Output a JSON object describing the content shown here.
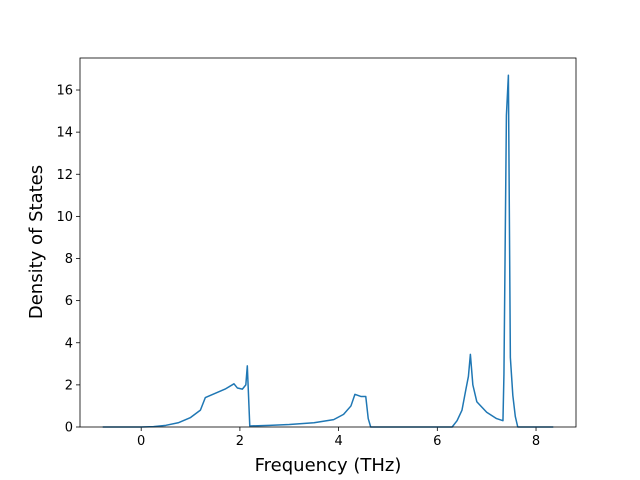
{
  "chart_data": {
    "type": "line",
    "x_label": "Frequency (THz)",
    "y_label": "Density of States",
    "color": "#1f77b4",
    "x": [
      -0.78,
      0,
      0.25,
      0.5,
      0.75,
      1.0,
      1.2,
      1.3,
      1.5,
      1.7,
      1.88,
      1.95,
      2.05,
      2.12,
      2.15,
      2.2,
      2.6,
      3.0,
      3.5,
      3.9,
      4.1,
      4.25,
      4.33,
      4.45,
      4.55,
      4.6,
      4.65,
      5.5,
      6.3,
      6.4,
      6.5,
      6.58,
      6.63,
      6.67,
      6.72,
      6.8,
      7.0,
      7.2,
      7.33,
      7.35,
      7.4,
      7.44,
      7.48,
      7.53,
      7.58,
      7.63,
      8.35
    ],
    "values": [
      0,
      0,
      0.02,
      0.08,
      0.2,
      0.45,
      0.8,
      1.4,
      1.6,
      1.8,
      2.05,
      1.85,
      1.8,
      2.0,
      2.9,
      0.05,
      0.08,
      0.12,
      0.2,
      0.35,
      0.6,
      1.0,
      1.55,
      1.45,
      1.45,
      0.4,
      0,
      0,
      0,
      0.3,
      0.8,
      1.8,
      2.4,
      3.45,
      2.0,
      1.2,
      0.7,
      0.4,
      0.3,
      2.5,
      14.8,
      16.7,
      3.3,
      1.5,
      0.5,
      0,
      0
    ],
    "xlim": [
      -1.24,
      8.81
    ],
    "ylim": [
      0,
      17.52
    ],
    "xticks": [
      0,
      2,
      4,
      6,
      8
    ],
    "yticks": [
      0,
      2,
      4,
      6,
      8,
      10,
      12,
      14,
      16
    ]
  }
}
